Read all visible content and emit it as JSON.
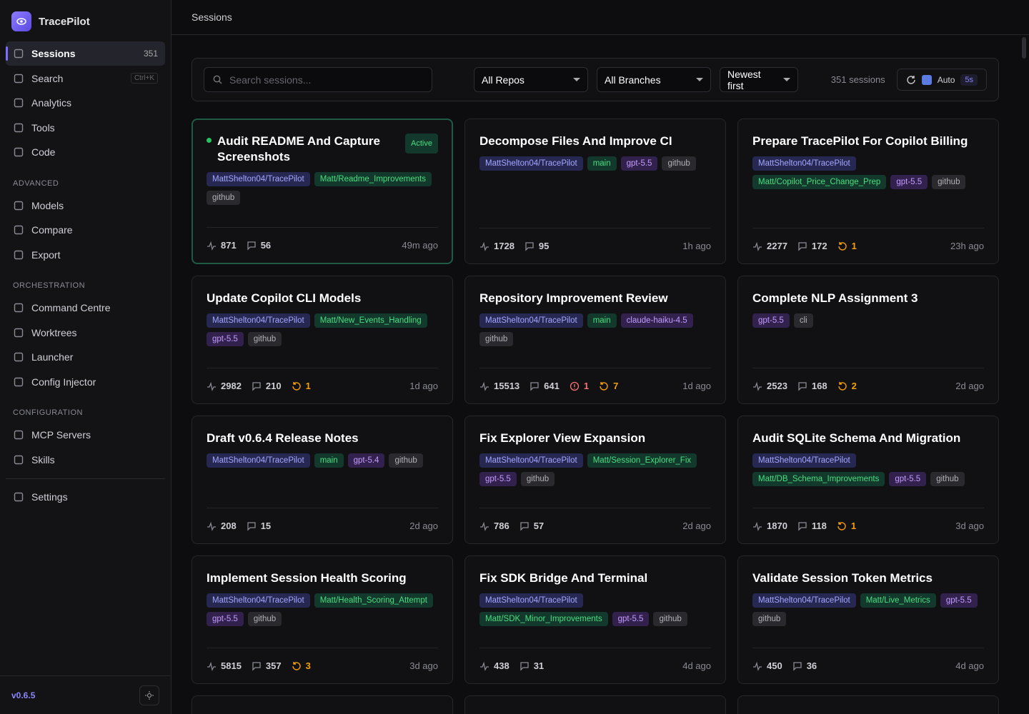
{
  "app": {
    "name": "TracePilot",
    "version": "v0.6.5"
  },
  "nav": {
    "items": [
      {
        "label": "Sessions",
        "badge": 351
      },
      {
        "label": "Search",
        "shortcut": "Ctrl+K"
      },
      {
        "label": "Analytics"
      },
      {
        "label": "Tools"
      },
      {
        "label": "Code"
      }
    ],
    "sections": [
      {
        "title": "ADVANCED",
        "items": [
          {
            "label": "Models"
          },
          {
            "label": "Compare"
          },
          {
            "label": "Export"
          }
        ]
      },
      {
        "title": "ORCHESTRATION",
        "items": [
          {
            "label": "Command Centre"
          },
          {
            "label": "Worktrees"
          },
          {
            "label": "Launcher"
          },
          {
            "label": "Config Injector"
          }
        ]
      },
      {
        "title": "CONFIGURATION",
        "items": [
          {
            "label": "MCP Servers"
          },
          {
            "label": "Skills"
          }
        ]
      }
    ],
    "footer": [
      {
        "label": "Settings"
      }
    ]
  },
  "header": {
    "title": "Sessions"
  },
  "toolbar": {
    "search_placeholder": "Search sessions...",
    "filters": [
      "All Repos",
      "All Branches",
      "Newest first"
    ],
    "count": "351 sessions",
    "auto": "Auto",
    "interval": "5s"
  },
  "sessions": [
    {
      "title": "Audit README And Capture Screenshots",
      "status": "Active",
      "repo": "MattShelton04/TracePilot",
      "branch": "Matt/Readme_Improvements",
      "source": "github",
      "turns": 871,
      "messages": 56,
      "time": "49m ago"
    },
    {
      "title": "Decompose Files And Improve CI",
      "repo": "MattShelton04/TracePilot",
      "branch": "main",
      "model": "gpt-5.5",
      "source": "github",
      "turns": 1728,
      "messages": 95,
      "time": "1h ago"
    },
    {
      "title": "Prepare TracePilot For Copilot Billing",
      "repo": "MattShelton04/TracePilot",
      "branch": "Matt/Copilot_Price_Change_Prep",
      "model": "gpt-5.5",
      "source": "github",
      "turns": 2277,
      "messages": 172,
      "retries": 1,
      "time": "23h ago"
    },
    {
      "title": "Update Copilot CLI Models",
      "repo": "MattShelton04/TracePilot",
      "branch": "Matt/New_Events_Handling",
      "model": "gpt-5.5",
      "source": "github",
      "turns": 2982,
      "messages": 210,
      "retries": 1,
      "time": "1d ago"
    },
    {
      "title": "Repository Improvement Review",
      "repo": "MattShelton04/TracePilot",
      "branch": "main",
      "model": "claude-haiku-4.5",
      "source": "github",
      "turns": 15513,
      "messages": 641,
      "errors": 1,
      "retries": 7,
      "time": "1d ago"
    },
    {
      "title": "Complete NLP Assignment 3",
      "model": "gpt-5.5",
      "source": "cli",
      "turns": 2523,
      "messages": 168,
      "retries": 2,
      "time": "2d ago"
    },
    {
      "title": "Draft v0.6.4 Release Notes",
      "repo": "MattShelton04/TracePilot",
      "branch": "main",
      "model": "gpt-5.4",
      "source": "github",
      "turns": 208,
      "messages": 15,
      "time": "2d ago"
    },
    {
      "title": "Fix Explorer View Expansion",
      "repo": "MattShelton04/TracePilot",
      "branch": "Matt/Session_Explorer_Fix",
      "model": "gpt-5.5",
      "source": "github",
      "turns": 786,
      "messages": 57,
      "time": "2d ago"
    },
    {
      "title": "Audit SQLite Schema And Migration",
      "repo": "MattShelton04/TracePilot",
      "branch": "Matt/DB_Schema_Improvements",
      "model": "gpt-5.5",
      "source": "github",
      "turns": 1870,
      "messages": 118,
      "retries": 1,
      "time": "3d ago"
    },
    {
      "title": "Implement Session Health Scoring",
      "repo": "MattShelton04/TracePilot",
      "branch": "Matt/Health_Scoring_Attempt",
      "model": "gpt-5.5",
      "source": "github",
      "turns": 5815,
      "messages": 357,
      "retries": 3,
      "time": "3d ago"
    },
    {
      "title": "Fix SDK Bridge And Terminal",
      "repo": "MattShelton04/TracePilot",
      "branch": "Matt/SDK_Minor_Improvements",
      "model": "gpt-5.5",
      "source": "github",
      "turns": 438,
      "messages": 31,
      "time": "4d ago"
    },
    {
      "title": "Validate Session Token Metrics",
      "repo": "MattShelton04/TracePilot",
      "branch": "Matt/Live_Metrics",
      "model": "gpt-5.5",
      "source": "github",
      "turns": 450,
      "messages": 36,
      "time": "4d ago"
    }
  ]
}
